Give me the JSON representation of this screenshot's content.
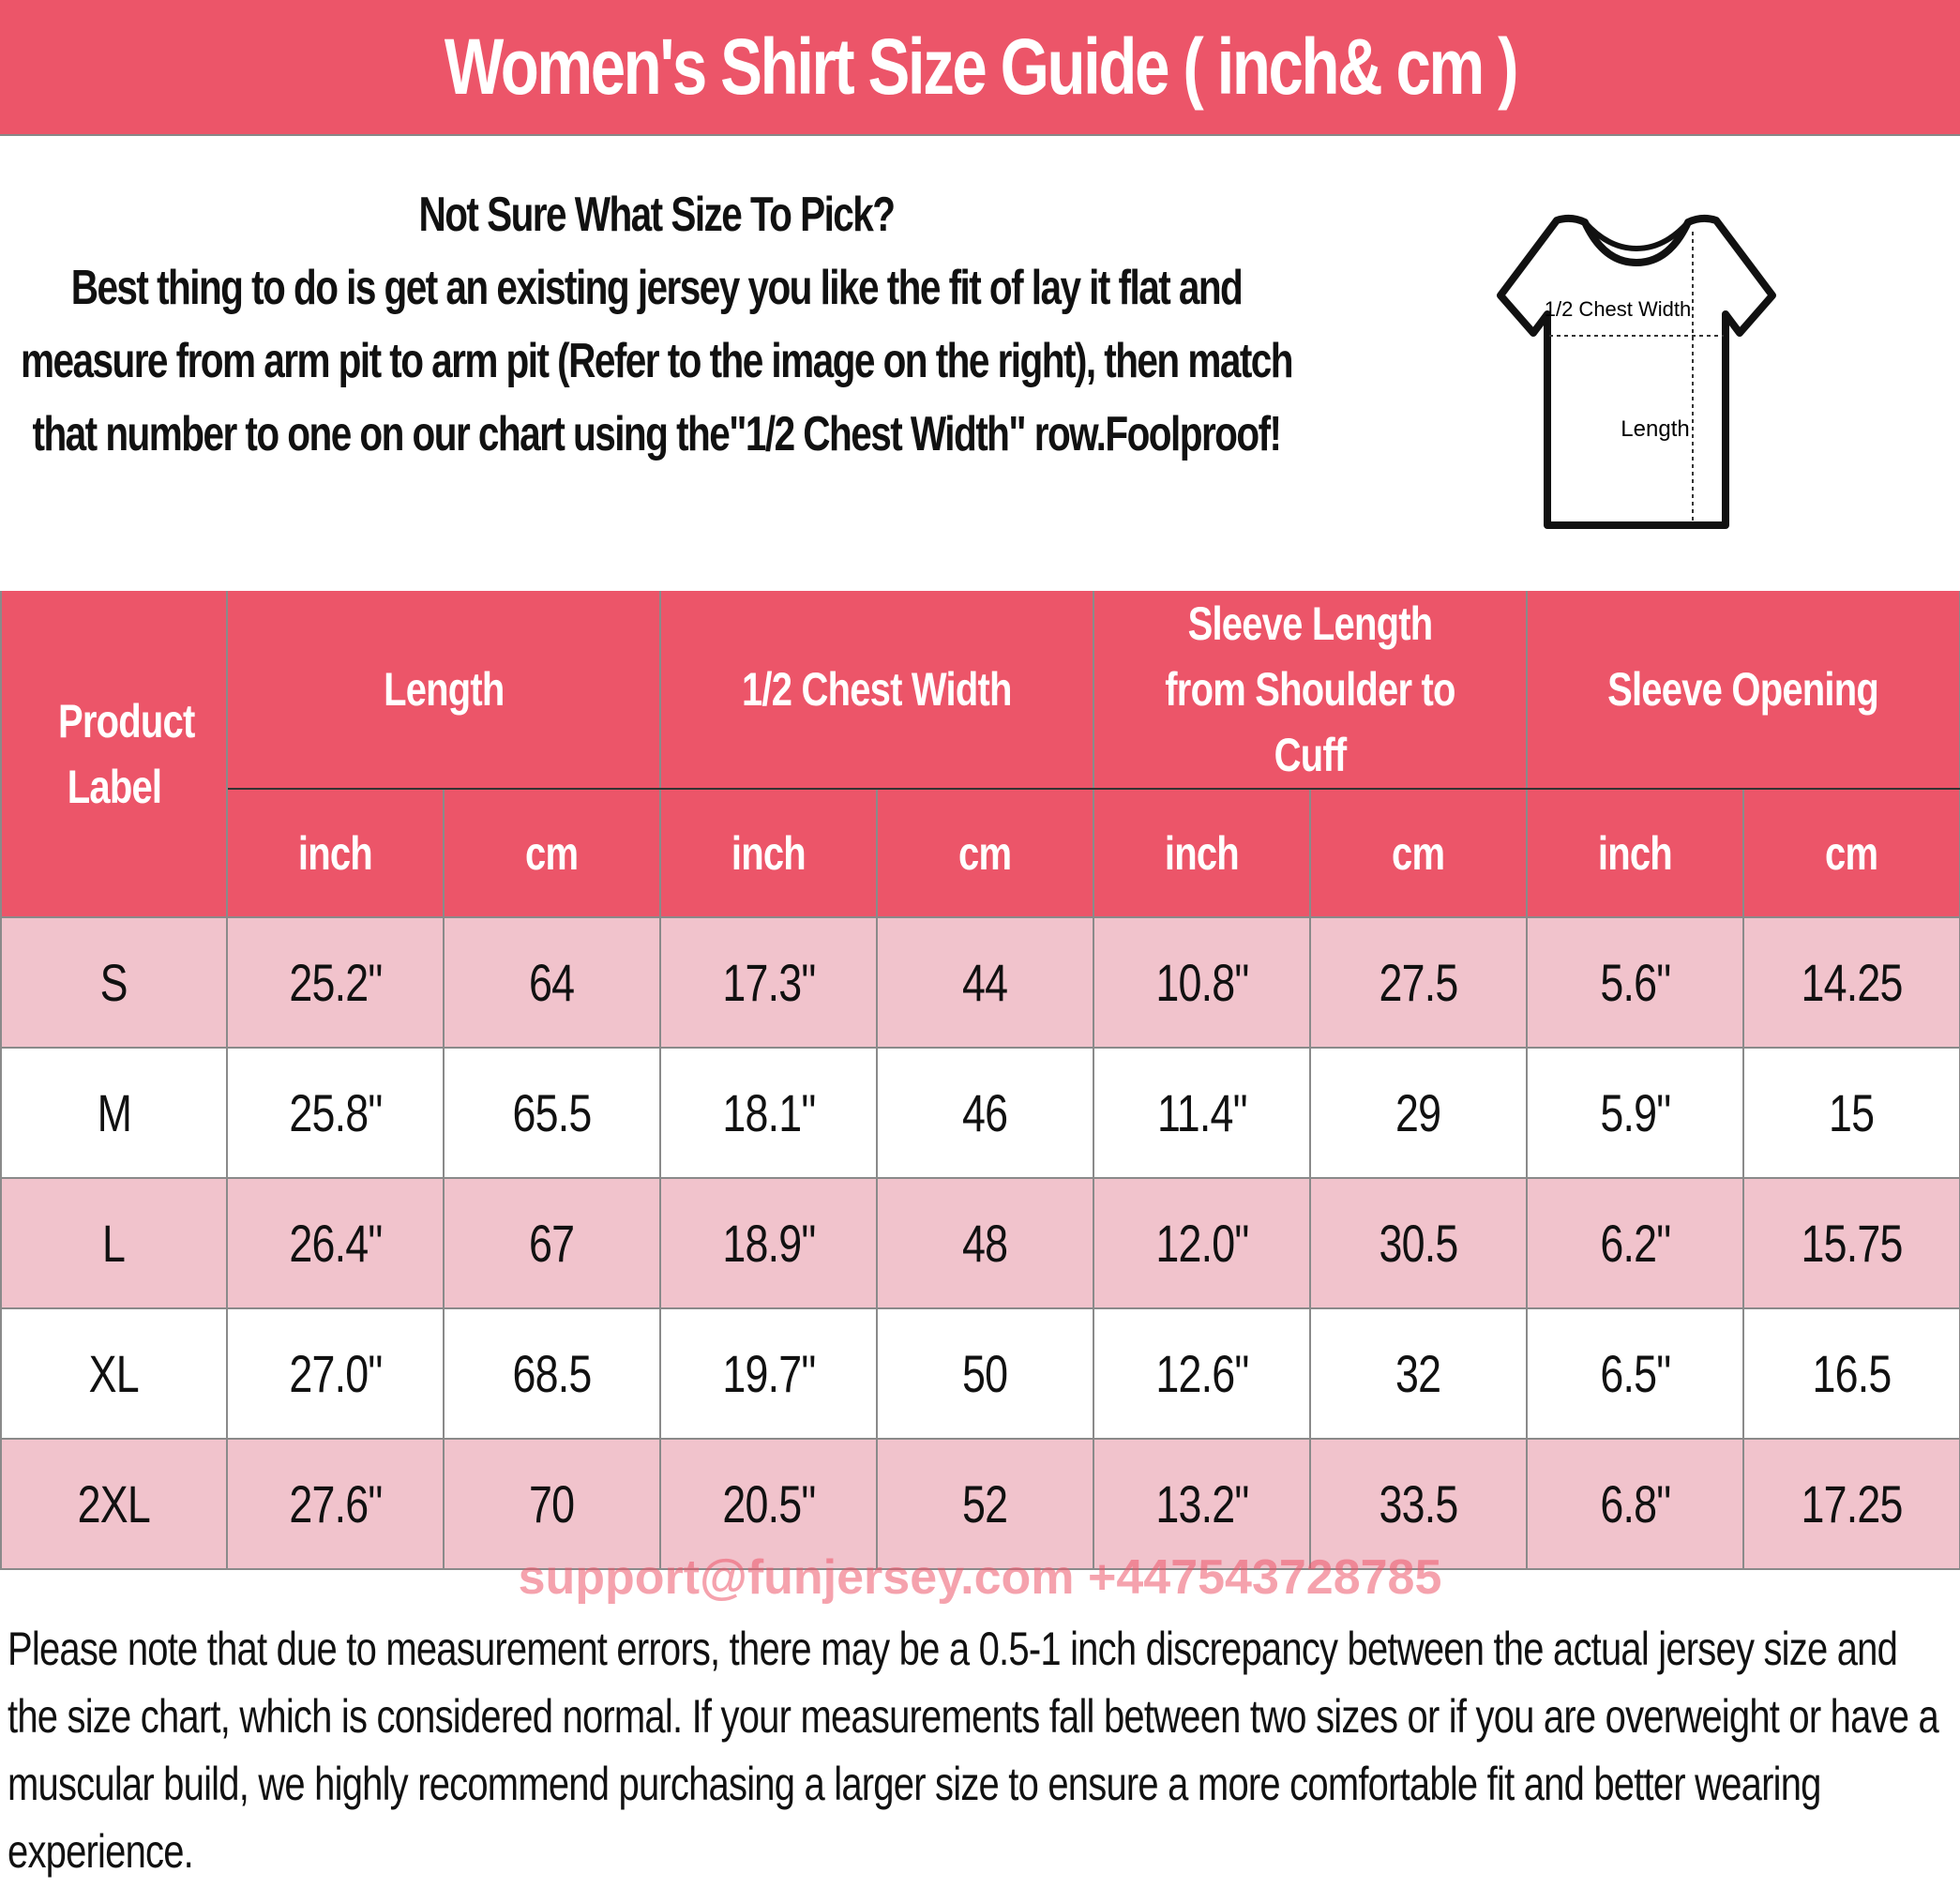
{
  "title": "Women's Shirt Size Guide ( inch& cm )",
  "intro": {
    "heading": "Not Sure What Size To Pick?",
    "body": "Best thing to do is get an existing jersey you like the fit of lay it flat and measure from arm pit to arm pit (Refer to the image on the right), then match that number to one on our chart using the\"1/2 Chest Width\" row.Foolproof!"
  },
  "diagram": {
    "chest_label": "1/2 Chest Width",
    "length_label": "Length"
  },
  "table": {
    "label_header": "Product Label",
    "groups": [
      "Length",
      "1/2 Chest Width",
      "Sleeve Length from Shoulder to Cuff",
      "Sleeve Opening"
    ],
    "units": [
      "inch",
      "cm",
      "inch",
      "cm",
      "inch",
      "cm",
      "inch",
      "cm"
    ],
    "rows": [
      [
        "S",
        "25.2\"",
        "64",
        "17.3\"",
        "44",
        "10.8\"",
        "27.5",
        "5.6\"",
        "14.25"
      ],
      [
        "M",
        "25.8\"",
        "65.5",
        "18.1\"",
        "46",
        "11.4\"",
        "29",
        "5.9\"",
        "15"
      ],
      [
        "L",
        "26.4\"",
        "67",
        "18.9\"",
        "48",
        "12.0\"",
        "30.5",
        "6.2\"",
        "15.75"
      ],
      [
        "XL",
        "27.0\"",
        "68.5",
        "19.7\"",
        "50",
        "12.6\"",
        "32",
        "6.5\"",
        "16.5"
      ],
      [
        "2XL",
        "27.6\"",
        "70",
        "20.5\"",
        "52",
        "13.2\"",
        "33.5",
        "6.8\"",
        "17.25"
      ]
    ]
  },
  "watermark": "support@funjersey.com +447543728785",
  "note": "Please note that due to measurement errors, there may be a 0.5-1 inch discrepancy between the actual jersey size and the size chart, which is considered normal. If your measurements fall between two sizes or if you are overweight or have a muscular build, we highly recommend purchasing a larger size to ensure a more comfortable fit and better wearing experience.",
  "colors": {
    "header": "#EC5569",
    "row_alt": "#F1C3CC"
  }
}
